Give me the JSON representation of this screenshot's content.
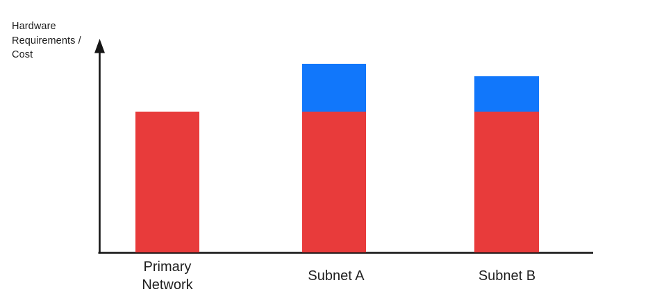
{
  "page": {
    "background": "#ffffff"
  },
  "y_axis": {
    "label": "Hardware\nRequirements /\nCost"
  },
  "chart_data": {
    "type": "bar",
    "stacked": true,
    "title": "",
    "xlabel": "",
    "ylabel": "Hardware Requirements / Cost",
    "categories": [
      "Primary Network",
      "Subnet A",
      "Subnet B"
    ],
    "series": [
      {
        "name": "red-base-segment",
        "color": "#E83B3B",
        "values": [
          1.0,
          1.0,
          1.0
        ]
      },
      {
        "name": "blue-top-segment",
        "color": "#1177FB",
        "values": [
          0,
          0.34,
          0.25
        ]
      }
    ],
    "value_axis": {
      "numeric_labels": false,
      "units": "relative",
      "ylim": [
        0,
        1.55
      ]
    },
    "grid": false,
    "legend_position": "none",
    "axis_color": "#161616",
    "text_color": "#1e1e1e"
  }
}
